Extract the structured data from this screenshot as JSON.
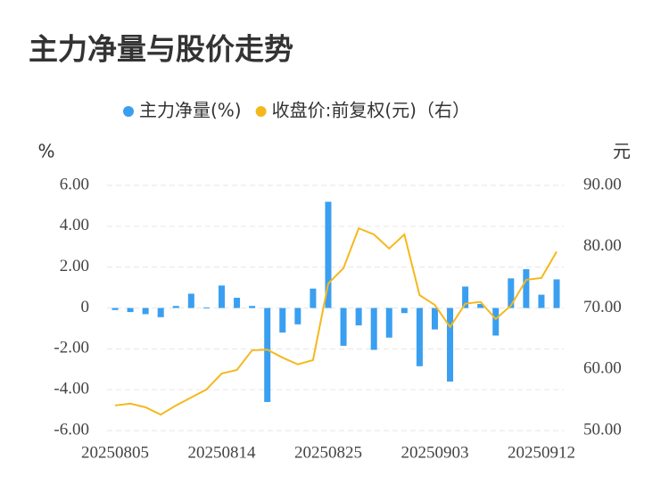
{
  "chart_data": {
    "type": "bar-line",
    "title": "主力净量与股价走势",
    "y_label": "%",
    "y2_label": "元",
    "categories": [
      "20250805",
      null,
      null,
      null,
      null,
      null,
      null,
      "20250814",
      null,
      null,
      null,
      null,
      null,
      null,
      "20250825",
      null,
      null,
      null,
      null,
      null,
      null,
      "20250903",
      null,
      null,
      null,
      null,
      null,
      null,
      "20250912",
      null
    ],
    "series": [
      {
        "name": "主力净量(%)",
        "type": "bar",
        "color": "#3a9ff0",
        "axis": "y",
        "values": [
          -0.1,
          -0.2,
          -0.3,
          -0.45,
          0.1,
          0.7,
          0.03,
          1.1,
          0.5,
          0.1,
          -4.6,
          -1.2,
          -0.8,
          0.95,
          5.2,
          -1.85,
          -0.85,
          -2.05,
          -1.45,
          -0.25,
          -2.85,
          -1.05,
          -3.6,
          1.05,
          0.2,
          -1.35,
          1.45,
          1.9,
          0.65,
          1.4
        ]
      },
      {
        "name": "收盘价:前复权(元)（右）",
        "type": "line",
        "color": "#f5b81c",
        "axis": "y2",
        "values": [
          54.1,
          54.4,
          53.8,
          52.6,
          54.1,
          55.4,
          56.7,
          59.3,
          59.9,
          63.1,
          63.2,
          61.9,
          60.8,
          61.5,
          74.0,
          76.5,
          83.0,
          82.0,
          79.7,
          82.0,
          72.1,
          70.5,
          66.9,
          70.7,
          71.0,
          68.2,
          70.4,
          74.6,
          74.9,
          79.2
        ]
      }
    ],
    "ylim": [
      -6,
      6
    ],
    "yticks": [
      {
        "value": 6,
        "label": "6.00"
      },
      {
        "value": 4,
        "label": "4.00"
      },
      {
        "value": 2,
        "label": "2.00"
      },
      0,
      {
        "value": -2,
        "label": "-2.00"
      },
      {
        "value": -4,
        "label": "-4.00"
      },
      {
        "value": -6,
        "label": "-6.00"
      }
    ],
    "y2lim": [
      50,
      90
    ],
    "y2ticks": [
      {
        "value": 90,
        "label": "90.00"
      },
      {
        "value": 80,
        "label": "80.00"
      },
      {
        "value": 70,
        "label": "70.00"
      },
      {
        "value": 60,
        "label": "60.00"
      },
      {
        "value": 50,
        "label": "50.00"
      }
    ],
    "grid": true
  }
}
